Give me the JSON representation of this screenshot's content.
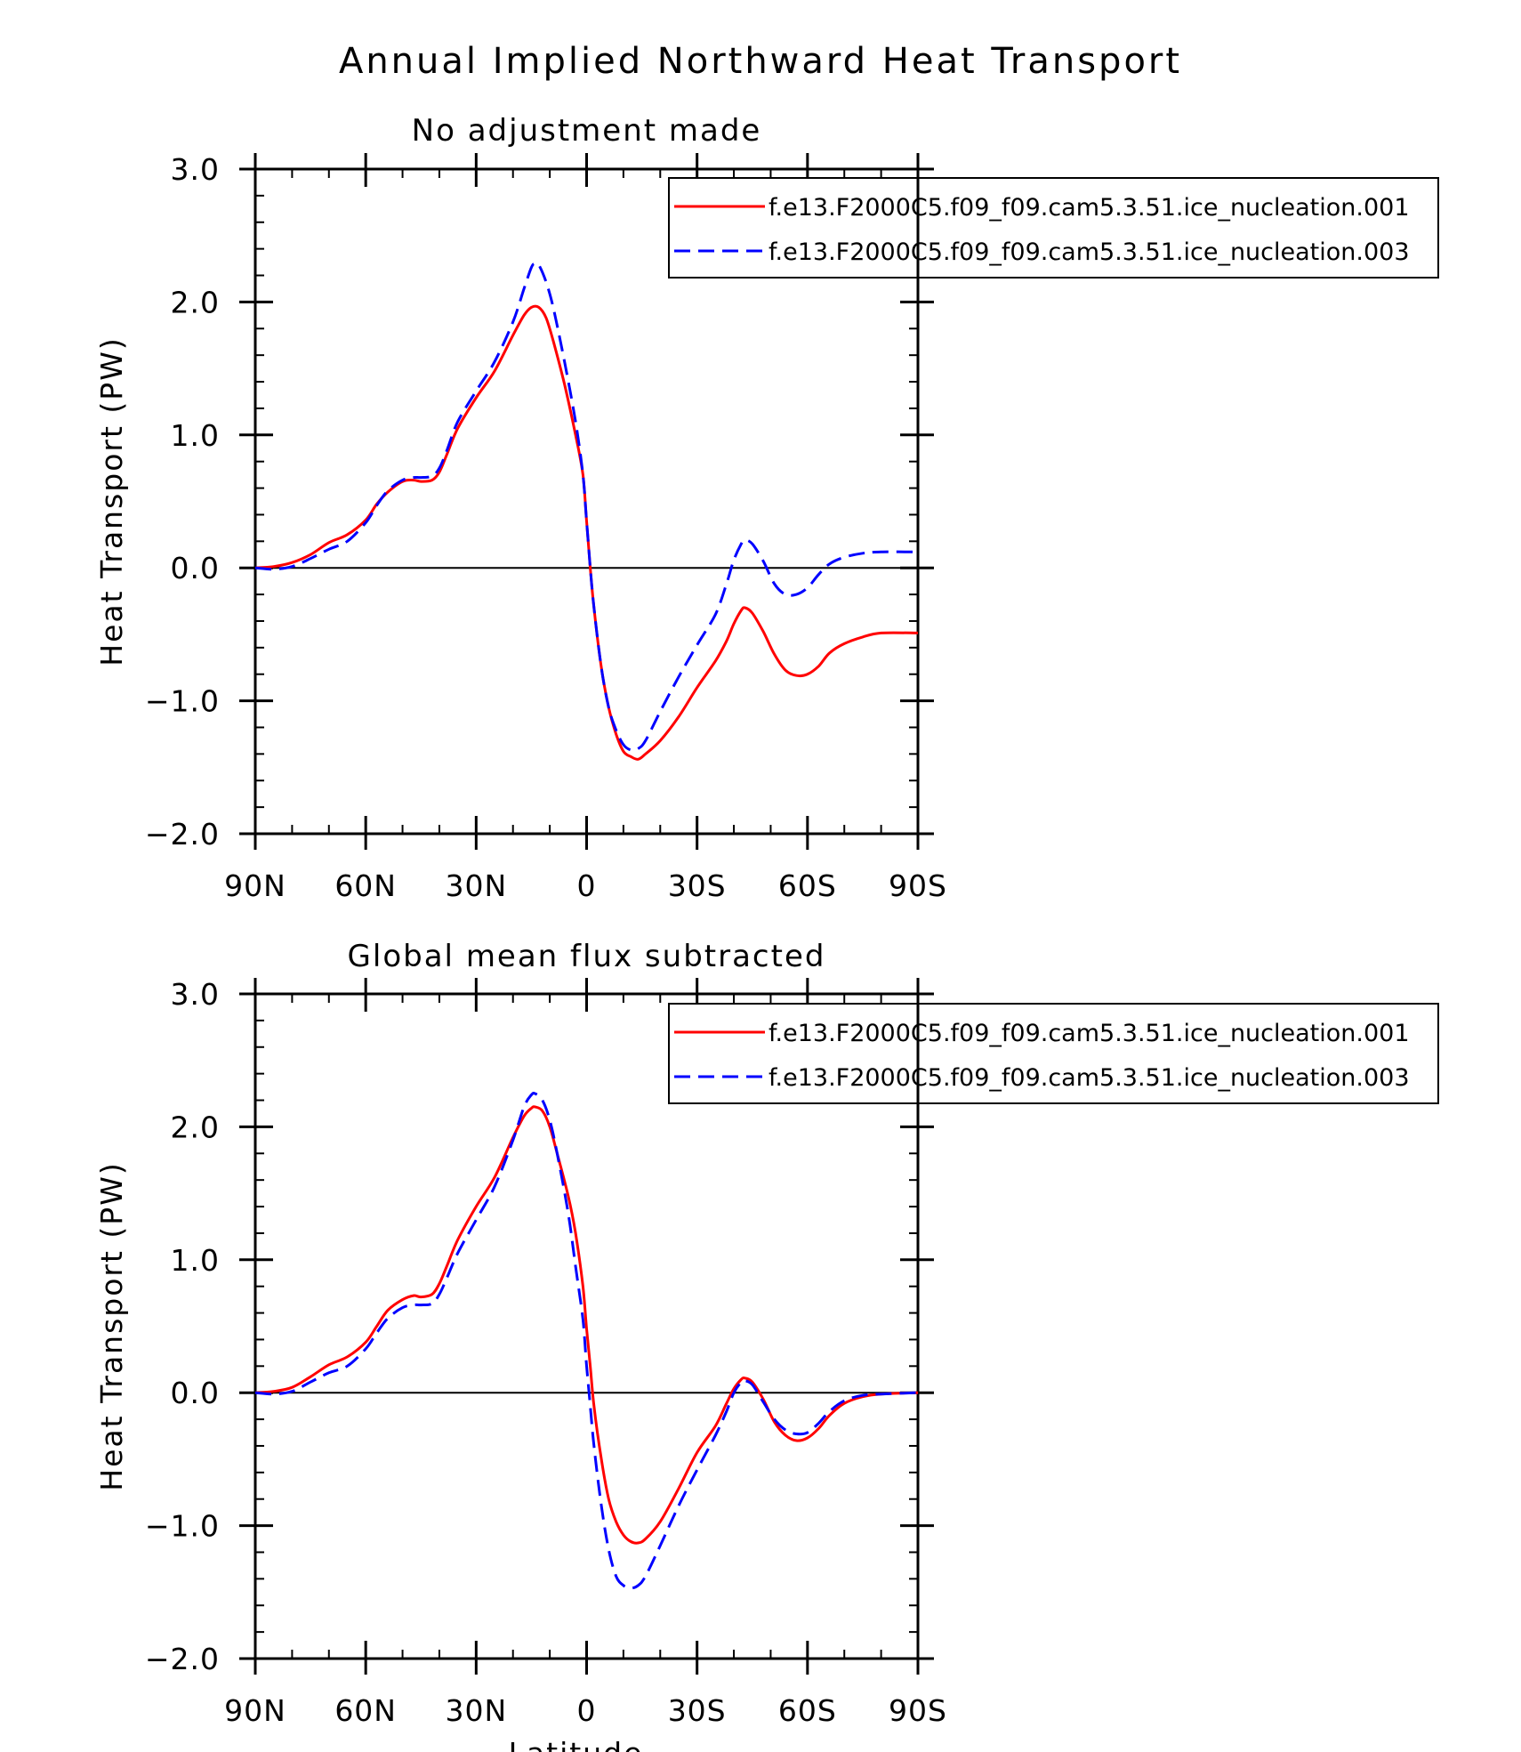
{
  "figure": {
    "title": "Annual Implied Northward Heat Transport"
  },
  "chart_data": [
    {
      "type": "line",
      "title": "No adjustment made",
      "xlabel": "",
      "ylabel": "Heat Transport (PW)",
      "xlim": [
        -90,
        90
      ],
      "ylim": [
        -2.0,
        3.0
      ],
      "x_direction": "north-to-south",
      "xticks": [
        {
          "value": -90,
          "label": "90N"
        },
        {
          "value": -60,
          "label": "60N"
        },
        {
          "value": -30,
          "label": "30N"
        },
        {
          "value": 0,
          "label": "0"
        },
        {
          "value": 30,
          "label": "30S"
        },
        {
          "value": 60,
          "label": "60S"
        },
        {
          "value": 90,
          "label": "90S"
        }
      ],
      "yticks": [
        {
          "value": 3.0,
          "label": "3.0"
        },
        {
          "value": 2.0,
          "label": "2.0"
        },
        {
          "value": 1.0,
          "label": "1.0"
        },
        {
          "value": 0.0,
          "label": "0.0"
        },
        {
          "value": -1.0,
          "label": "−1.0"
        },
        {
          "value": -2.0,
          "label": "−2.0"
        }
      ],
      "zero_line": true,
      "legend_position": "top-right",
      "series": [
        {
          "name": "f.e13.F2000C5.f09_f09.cam5.3.51.ice_nucleation.001",
          "color": "#ff0000",
          "dash": "solid",
          "points": [
            [
              -90,
              0
            ],
            [
              -85,
              0.01
            ],
            [
              -80,
              0.04
            ],
            [
              -75,
              0.1
            ],
            [
              -70,
              0.19
            ],
            [
              -65,
              0.25
            ],
            [
              -60,
              0.36
            ],
            [
              -57,
              0.48
            ],
            [
              -54,
              0.57
            ],
            [
              -50,
              0.65
            ],
            [
              -47,
              0.66
            ],
            [
              -45,
              0.65
            ],
            [
              -42,
              0.66
            ],
            [
              -40,
              0.72
            ],
            [
              -38,
              0.85
            ],
            [
              -35,
              1.05
            ],
            [
              -30,
              1.28
            ],
            [
              -25,
              1.48
            ],
            [
              -20,
              1.75
            ],
            [
              -17,
              1.9
            ],
            [
              -15,
              1.96
            ],
            [
              -13,
              1.96
            ],
            [
              -11,
              1.88
            ],
            [
              -9,
              1.7
            ],
            [
              -6,
              1.38
            ],
            [
              -3,
              1.0
            ],
            [
              -1,
              0.7
            ],
            [
              0,
              0.35
            ],
            [
              1,
              0.0
            ],
            [
              2,
              -0.3
            ],
            [
              4,
              -0.75
            ],
            [
              6,
              -1.05
            ],
            [
              8,
              -1.25
            ],
            [
              10,
              -1.38
            ],
            [
              12,
              -1.42
            ],
            [
              14,
              -1.44
            ],
            [
              16,
              -1.4
            ],
            [
              20,
              -1.3
            ],
            [
              25,
              -1.12
            ],
            [
              30,
              -0.9
            ],
            [
              35,
              -0.7
            ],
            [
              38,
              -0.55
            ],
            [
              40,
              -0.42
            ],
            [
              42,
              -0.32
            ],
            [
              43,
              -0.3
            ],
            [
              45,
              -0.34
            ],
            [
              48,
              -0.48
            ],
            [
              51,
              -0.65
            ],
            [
              54,
              -0.77
            ],
            [
              57,
              -0.81
            ],
            [
              60,
              -0.8
            ],
            [
              63,
              -0.74
            ],
            [
              66,
              -0.64
            ],
            [
              70,
              -0.57
            ],
            [
              75,
              -0.52
            ],
            [
              80,
              -0.49
            ],
            [
              90,
              -0.49
            ]
          ]
        },
        {
          "name": "f.e13.F2000C5.f09_f09.cam5.3.51.ice_nucleation.003",
          "color": "#0000ff",
          "dash": "dashed",
          "points": [
            [
              -90,
              0
            ],
            [
              -85,
              -0.01
            ],
            [
              -80,
              0.01
            ],
            [
              -75,
              0.07
            ],
            [
              -70,
              0.14
            ],
            [
              -65,
              0.2
            ],
            [
              -60,
              0.34
            ],
            [
              -57,
              0.47
            ],
            [
              -54,
              0.58
            ],
            [
              -50,
              0.66
            ],
            [
              -47,
              0.68
            ],
            [
              -45,
              0.68
            ],
            [
              -42,
              0.69
            ],
            [
              -40,
              0.75
            ],
            [
              -38,
              0.88
            ],
            [
              -35,
              1.1
            ],
            [
              -30,
              1.33
            ],
            [
              -25,
              1.55
            ],
            [
              -20,
              1.85
            ],
            [
              -17,
              2.1
            ],
            [
              -15,
              2.26
            ],
            [
              -14,
              2.29
            ],
            [
              -13,
              2.28
            ],
            [
              -11,
              2.15
            ],
            [
              -9,
              1.95
            ],
            [
              -6,
              1.55
            ],
            [
              -3,
              1.1
            ],
            [
              -1,
              0.7
            ],
            [
              0,
              0.35
            ],
            [
              1,
              0.0
            ],
            [
              2,
              -0.3
            ],
            [
              4,
              -0.75
            ],
            [
              6,
              -1.05
            ],
            [
              8,
              -1.22
            ],
            [
              10,
              -1.33
            ],
            [
              12,
              -1.37
            ],
            [
              14,
              -1.36
            ],
            [
              16,
              -1.3
            ],
            [
              20,
              -1.08
            ],
            [
              25,
              -0.82
            ],
            [
              30,
              -0.58
            ],
            [
              35,
              -0.35
            ],
            [
              38,
              -0.12
            ],
            [
              40,
              0.06
            ],
            [
              42,
              0.18
            ],
            [
              43,
              0.21
            ],
            [
              45,
              0.18
            ],
            [
              48,
              0.05
            ],
            [
              51,
              -0.12
            ],
            [
              54,
              -0.2
            ],
            [
              57,
              -0.2
            ],
            [
              60,
              -0.15
            ],
            [
              63,
              -0.05
            ],
            [
              66,
              0.03
            ],
            [
              70,
              0.08
            ],
            [
              75,
              0.11
            ],
            [
              80,
              0.12
            ],
            [
              90,
              0.12
            ]
          ]
        }
      ]
    },
    {
      "type": "line",
      "title": "Global mean flux subtracted",
      "xlabel": "Latitude",
      "ylabel": "Heat Transport (PW)",
      "xlim": [
        -90,
        90
      ],
      "ylim": [
        -2.0,
        3.0
      ],
      "x_direction": "north-to-south",
      "xticks": [
        {
          "value": -90,
          "label": "90N"
        },
        {
          "value": -60,
          "label": "60N"
        },
        {
          "value": -30,
          "label": "30N"
        },
        {
          "value": 0,
          "label": "0"
        },
        {
          "value": 30,
          "label": "30S"
        },
        {
          "value": 60,
          "label": "60S"
        },
        {
          "value": 90,
          "label": "90S"
        }
      ],
      "yticks": [
        {
          "value": 3.0,
          "label": "3.0"
        },
        {
          "value": 2.0,
          "label": "2.0"
        },
        {
          "value": 1.0,
          "label": "1.0"
        },
        {
          "value": 0.0,
          "label": "0.0"
        },
        {
          "value": -1.0,
          "label": "−1.0"
        },
        {
          "value": -2.0,
          "label": "−2.0"
        }
      ],
      "zero_line": true,
      "legend_position": "top-right",
      "series": [
        {
          "name": "f.e13.F2000C5.f09_f09.cam5.3.51.ice_nucleation.001",
          "color": "#ff0000",
          "dash": "solid",
          "points": [
            [
              -90,
              0
            ],
            [
              -85,
              0.01
            ],
            [
              -80,
              0.04
            ],
            [
              -75,
              0.12
            ],
            [
              -70,
              0.21
            ],
            [
              -65,
              0.27
            ],
            [
              -60,
              0.38
            ],
            [
              -57,
              0.5
            ],
            [
              -54,
              0.62
            ],
            [
              -50,
              0.7
            ],
            [
              -47,
              0.73
            ],
            [
              -45,
              0.72
            ],
            [
              -42,
              0.74
            ],
            [
              -40,
              0.82
            ],
            [
              -38,
              0.95
            ],
            [
              -35,
              1.15
            ],
            [
              -30,
              1.4
            ],
            [
              -25,
              1.62
            ],
            [
              -20,
              1.92
            ],
            [
              -17,
              2.08
            ],
            [
              -15,
              2.14
            ],
            [
              -14,
              2.15
            ],
            [
              -12,
              2.12
            ],
            [
              -10,
              2.0
            ],
            [
              -8,
              1.8
            ],
            [
              -5,
              1.48
            ],
            [
              -3,
              1.2
            ],
            [
              -1,
              0.8
            ],
            [
              0,
              0.48
            ],
            [
              1,
              0.2
            ],
            [
              2,
              -0.1
            ],
            [
              4,
              -0.5
            ],
            [
              6,
              -0.8
            ],
            [
              8,
              -0.97
            ],
            [
              10,
              -1.07
            ],
            [
              12,
              -1.12
            ],
            [
              14,
              -1.13
            ],
            [
              16,
              -1.1
            ],
            [
              20,
              -0.97
            ],
            [
              25,
              -0.72
            ],
            [
              30,
              -0.45
            ],
            [
              35,
              -0.25
            ],
            [
              38,
              -0.08
            ],
            [
              40,
              0.03
            ],
            [
              42,
              0.1
            ],
            [
              43,
              0.11
            ],
            [
              45,
              0.08
            ],
            [
              48,
              -0.05
            ],
            [
              51,
              -0.22
            ],
            [
              54,
              -0.32
            ],
            [
              57,
              -0.36
            ],
            [
              60,
              -0.34
            ],
            [
              63,
              -0.27
            ],
            [
              66,
              -0.17
            ],
            [
              70,
              -0.08
            ],
            [
              75,
              -0.03
            ],
            [
              80,
              -0.01
            ],
            [
              90,
              0
            ]
          ]
        },
        {
          "name": "f.e13.F2000C5.f09_f09.cam5.3.51.ice_nucleation.003",
          "color": "#0000ff",
          "dash": "dashed",
          "points": [
            [
              -90,
              0
            ],
            [
              -85,
              -0.01
            ],
            [
              -80,
              0.01
            ],
            [
              -75,
              0.08
            ],
            [
              -70,
              0.15
            ],
            [
              -65,
              0.2
            ],
            [
              -60,
              0.33
            ],
            [
              -57,
              0.45
            ],
            [
              -54,
              0.56
            ],
            [
              -50,
              0.64
            ],
            [
              -47,
              0.66
            ],
            [
              -45,
              0.66
            ],
            [
              -42,
              0.67
            ],
            [
              -40,
              0.74
            ],
            [
              -38,
              0.86
            ],
            [
              -35,
              1.05
            ],
            [
              -30,
              1.3
            ],
            [
              -25,
              1.55
            ],
            [
              -20,
              1.9
            ],
            [
              -17,
              2.15
            ],
            [
              -15,
              2.24
            ],
            [
              -14,
              2.25
            ],
            [
              -12,
              2.2
            ],
            [
              -10,
              2.05
            ],
            [
              -8,
              1.8
            ],
            [
              -5,
              1.35
            ],
            [
              -3,
              0.95
            ],
            [
              -1,
              0.55
            ],
            [
              0,
              0.2
            ],
            [
              1,
              -0.1
            ],
            [
              2,
              -0.4
            ],
            [
              4,
              -0.85
            ],
            [
              6,
              -1.18
            ],
            [
              8,
              -1.38
            ],
            [
              10,
              -1.45
            ],
            [
              12,
              -1.47
            ],
            [
              14,
              -1.45
            ],
            [
              16,
              -1.38
            ],
            [
              20,
              -1.15
            ],
            [
              25,
              -0.85
            ],
            [
              30,
              -0.58
            ],
            [
              35,
              -0.32
            ],
            [
              38,
              -0.14
            ],
            [
              40,
              0.0
            ],
            [
              42,
              0.08
            ],
            [
              43,
              0.09
            ],
            [
              45,
              0.06
            ],
            [
              48,
              -0.07
            ],
            [
              51,
              -0.2
            ],
            [
              54,
              -0.28
            ],
            [
              57,
              -0.31
            ],
            [
              60,
              -0.3
            ],
            [
              63,
              -0.23
            ],
            [
              66,
              -0.14
            ],
            [
              70,
              -0.06
            ],
            [
              75,
              -0.02
            ],
            [
              80,
              -0.01
            ],
            [
              90,
              0
            ]
          ]
        }
      ]
    }
  ]
}
